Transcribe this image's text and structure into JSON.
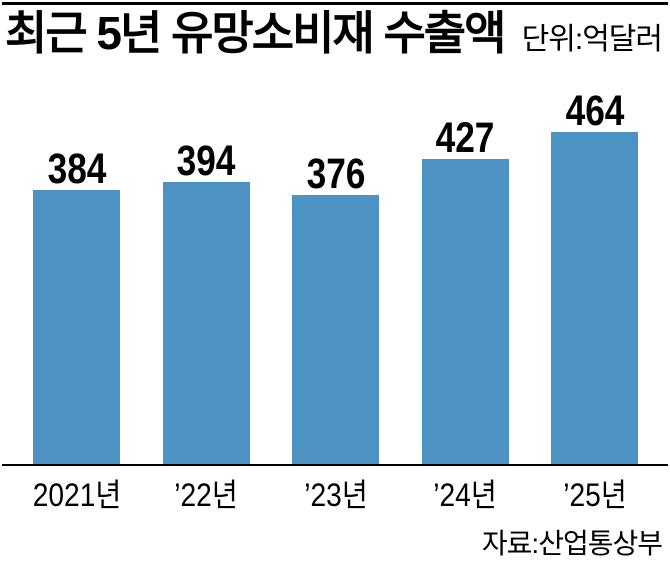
{
  "header": {
    "title": "최근 5년 유망소비재 수출액",
    "unit_label": "단위:억달러"
  },
  "footer": {
    "source_label": "자료:산업통상부"
  },
  "colors": {
    "bar": "#4c93c3",
    "text": "#000000",
    "rule": "#000000",
    "background": "#ffffff"
  },
  "chart_data": {
    "type": "bar",
    "title": "최근 5년 유망소비재 수출액",
    "unit": "억달러",
    "categories": [
      "2021년",
      "’22년",
      "’23년",
      "’24년",
      "’25년"
    ],
    "values": [
      384,
      394,
      376,
      427,
      464
    ],
    "xlabel": "",
    "ylabel": "",
    "ylim": [
      0,
      480
    ],
    "grid": false,
    "legend": "none",
    "value_labels_shown": true,
    "bar_color": "#4c93c3",
    "source": "자료:산업통상부"
  }
}
